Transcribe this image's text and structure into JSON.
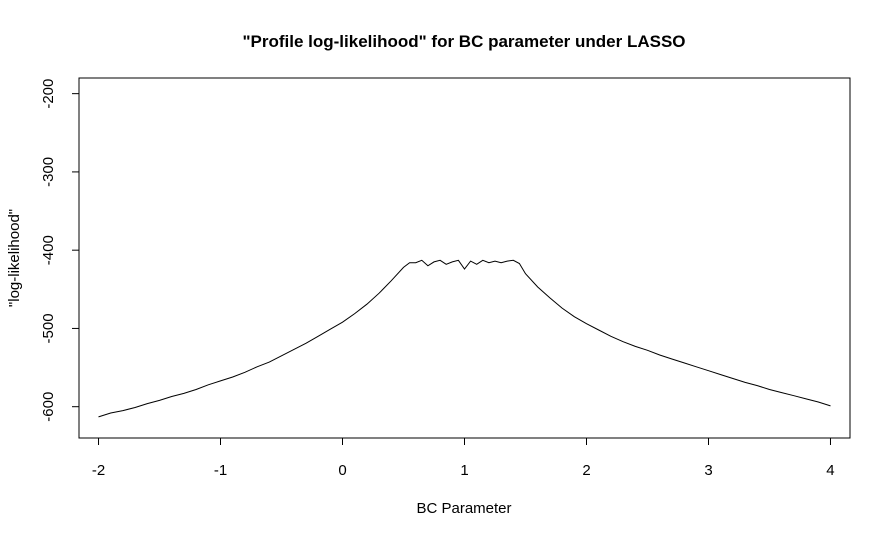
{
  "chart_data": {
    "type": "line",
    "title": "\"Profile log-likelihood\" for BC parameter under LASSO",
    "xlabel": "BC Parameter",
    "ylabel": "\"log-likelihood\"",
    "xlim": [
      -2.16,
      4.16
    ],
    "ylim": [
      -640,
      -180
    ],
    "x_ticks": [
      -2,
      -1,
      0,
      1,
      2,
      3,
      4
    ],
    "x_tick_labels": [
      "-2",
      "-1",
      "0",
      "1",
      "2",
      "3",
      "4"
    ],
    "y_ticks": [
      -600,
      -500,
      -400,
      -300,
      -200
    ],
    "y_tick_labels": [
      "-600",
      "-500",
      "-400",
      "-300",
      "-200"
    ],
    "grid": false,
    "legend": "none",
    "line_color": "#000000",
    "series": [
      {
        "x": [
          -2.0,
          -1.9,
          -1.8,
          -1.7,
          -1.6,
          -1.5,
          -1.4,
          -1.3,
          -1.2,
          -1.1,
          -1.0,
          -0.9,
          -0.8,
          -0.7,
          -0.6,
          -0.5,
          -0.4,
          -0.3,
          -0.2,
          -0.1,
          0.0,
          0.1,
          0.2,
          0.3,
          0.4,
          0.5,
          0.55,
          0.6,
          0.65,
          0.7,
          0.75,
          0.8,
          0.85,
          0.9,
          0.95,
          1.0,
          1.05,
          1.1,
          1.15,
          1.2,
          1.25,
          1.3,
          1.35,
          1.4,
          1.45,
          1.5,
          1.6,
          1.7,
          1.8,
          1.9,
          2.0,
          2.1,
          2.2,
          2.3,
          2.4,
          2.5,
          2.6,
          2.7,
          2.8,
          2.9,
          3.0,
          3.1,
          3.2,
          3.3,
          3.4,
          3.5,
          3.6,
          3.7,
          3.8,
          3.9,
          4.0
        ],
        "y": [
          -613,
          -608,
          -605,
          -601,
          -596,
          -592,
          -587,
          -583,
          -578,
          -572,
          -567,
          -562,
          -556,
          -549,
          -543,
          -535,
          -527,
          -519,
          -510,
          -501,
          -492,
          -481,
          -469,
          -455,
          -439,
          -422,
          -416,
          -416,
          -413,
          -420,
          -415,
          -413,
          -418,
          -415,
          -413,
          -424,
          -414,
          -418,
          -413,
          -416,
          -414,
          -416,
          -414,
          -413,
          -417,
          -430,
          -447,
          -461,
          -474,
          -485,
          -494,
          -502,
          -510,
          -517,
          -523,
          -528,
          -534,
          -539,
          -544,
          -549,
          -554,
          -559,
          -564,
          -569,
          -573,
          -578,
          -582,
          -586,
          -590,
          -594,
          -599
        ]
      }
    ]
  }
}
